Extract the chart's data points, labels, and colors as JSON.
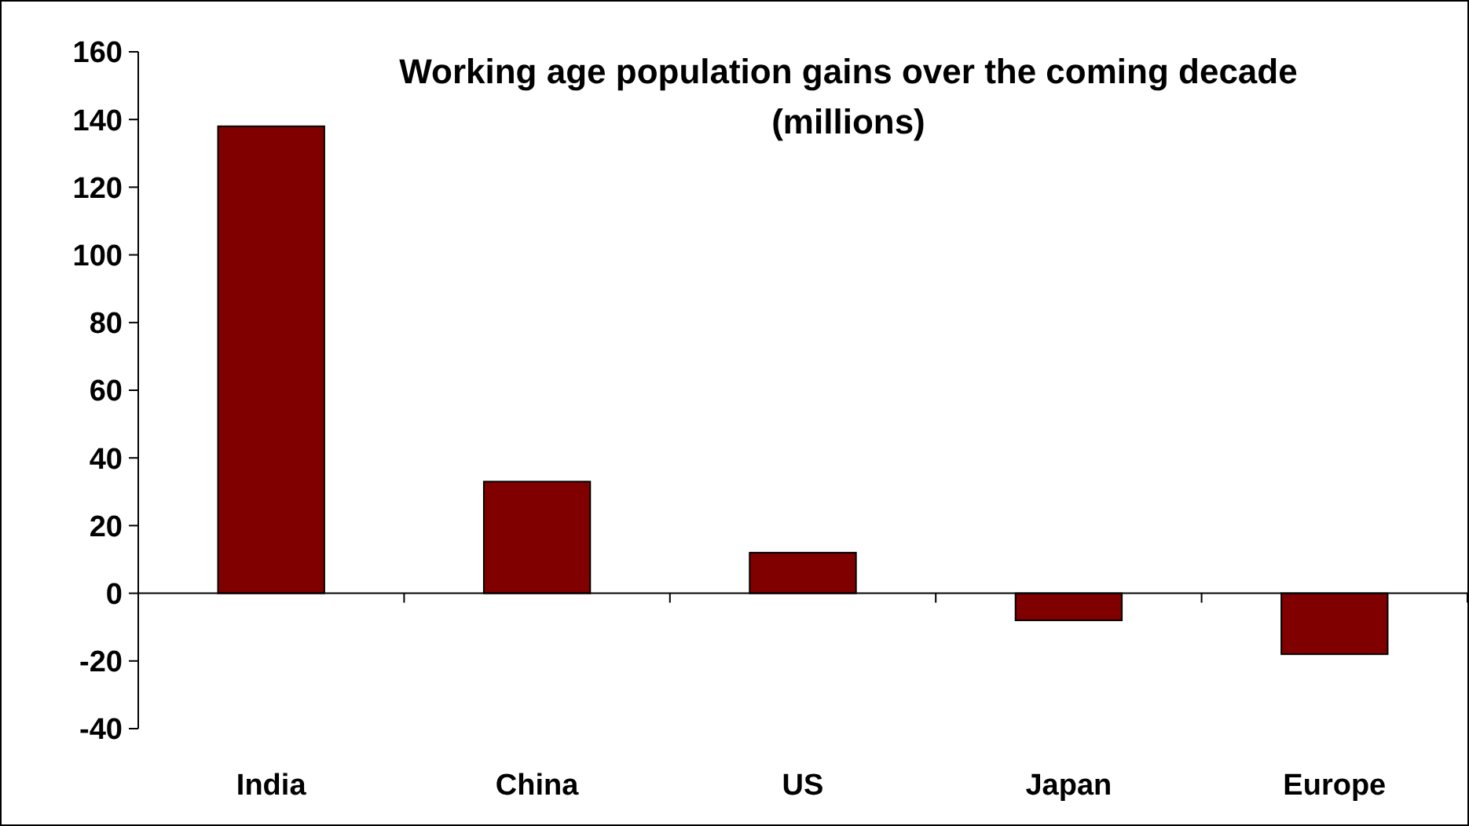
{
  "chart_data": {
    "type": "bar",
    "title": "Working age population gains over the coming decade\n(millions)",
    "categories": [
      "India",
      "China",
      "US",
      "Japan",
      "Europe"
    ],
    "values": [
      138,
      33,
      12,
      -8,
      -18
    ],
    "color": "#800000",
    "ylim": [
      -40,
      160
    ],
    "yticks": [
      -40,
      -20,
      0,
      20,
      40,
      60,
      80,
      100,
      120,
      140,
      160
    ]
  }
}
